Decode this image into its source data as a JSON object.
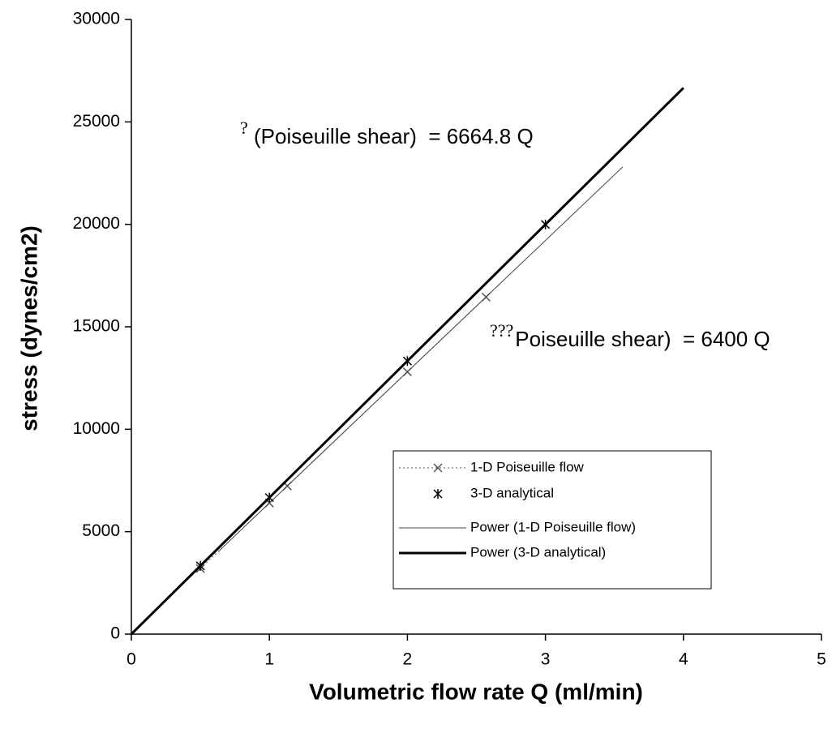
{
  "chart_data": {
    "type": "scatter",
    "xlabel": "Volumetric flow rate Q (ml/min)",
    "ylabel": "stress (dynes/cm2)",
    "xlim": [
      0,
      5
    ],
    "xticks": [
      0,
      1,
      2,
      3,
      4,
      5
    ],
    "ylim": [
      0,
      30000
    ],
    "yticks": [
      0,
      5000,
      10000,
      15000,
      20000,
      25000,
      30000
    ],
    "series": [
      {
        "name": "1-D Poiseuille flow",
        "color": "#555555",
        "marker": "x",
        "line": "dotted",
        "x": [
          0.5,
          1,
          1.13,
          2,
          2.57
        ],
        "values": [
          3200,
          6400,
          7230,
          12800,
          16450
        ]
      },
      {
        "name": "3-D analytical",
        "color": "#000000",
        "marker": "asterisk",
        "line": "none",
        "x": [
          0.5,
          1,
          2,
          3
        ],
        "values": [
          3332,
          6665,
          13330,
          19994
        ]
      },
      {
        "name": "Power (1-D Poiseuille flow)",
        "color": "#444444",
        "marker": "none",
        "line": "thin",
        "x": [
          0.63,
          3.56
        ],
        "values": [
          4030,
          22800
        ]
      },
      {
        "name": "Power (3-D analytical)",
        "color": "#000000",
        "marker": "none",
        "line": "thick",
        "x": [
          0,
          4
        ],
        "values": [
          0,
          26660
        ]
      }
    ],
    "annotations": [
      {
        "prefix": "?",
        "text": "(Poiseuille shear)  = 6664.8 Q"
      },
      {
        "prefix": "???",
        "text": "Poiseuille shear)  = 6400 Q"
      }
    ]
  }
}
